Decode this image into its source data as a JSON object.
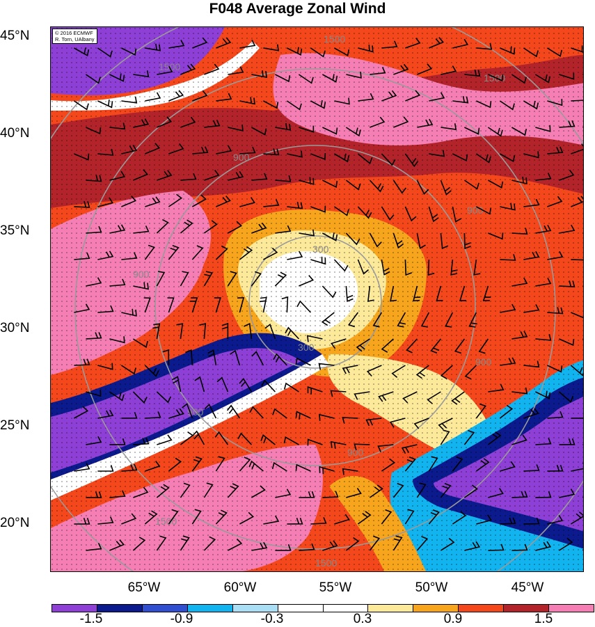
{
  "title": "F048 Average Zonal Wind",
  "credit": [
    "© 2016 ECMWF",
    "R. Torn, UAlbany"
  ],
  "lat_labels": [
    "45°N",
    "40°N",
    "35°N",
    "30°N",
    "25°N",
    "20°N"
  ],
  "lon_labels": [
    "65°W",
    "60°W",
    "55°W",
    "50°W",
    "45°W"
  ],
  "contour_labels": [
    "300",
    "300",
    "900",
    "900",
    "900",
    "900",
    "900",
    "900",
    "1500",
    "1500",
    "1500",
    "1500",
    "1500"
  ],
  "colorbar": {
    "colors": [
      "#8e3fd6",
      "#0b1a8c",
      "#2f4fd0",
      "#12b4ef",
      "#a9def5",
      "#ffffff",
      "#ffffff",
      "#fcea9a",
      "#f7a51c",
      "#f4481c",
      "#b3242a",
      "#f57fb5"
    ],
    "labels": [
      "-1.5",
      "-0.9",
      "-0.3",
      "0.3",
      "0.9",
      "1.5"
    ]
  },
  "map": {
    "lat_range": [
      17.5,
      45.5
    ],
    "lon_range": [
      -70.3,
      -42.2
    ],
    "colors": {
      "pink": "#f57fb5",
      "darkred": "#b3242a",
      "orangered": "#f4481c",
      "orange": "#f7a51c",
      "yellow": "#fcea9a",
      "white": "#ffffff",
      "lightblue": "#a9def5",
      "cyan": "#12b4ef",
      "blue": "#2f4fd0",
      "navy": "#0b1a8c",
      "purple": "#8e3fd6",
      "contour": "#9a9a9a"
    }
  }
}
